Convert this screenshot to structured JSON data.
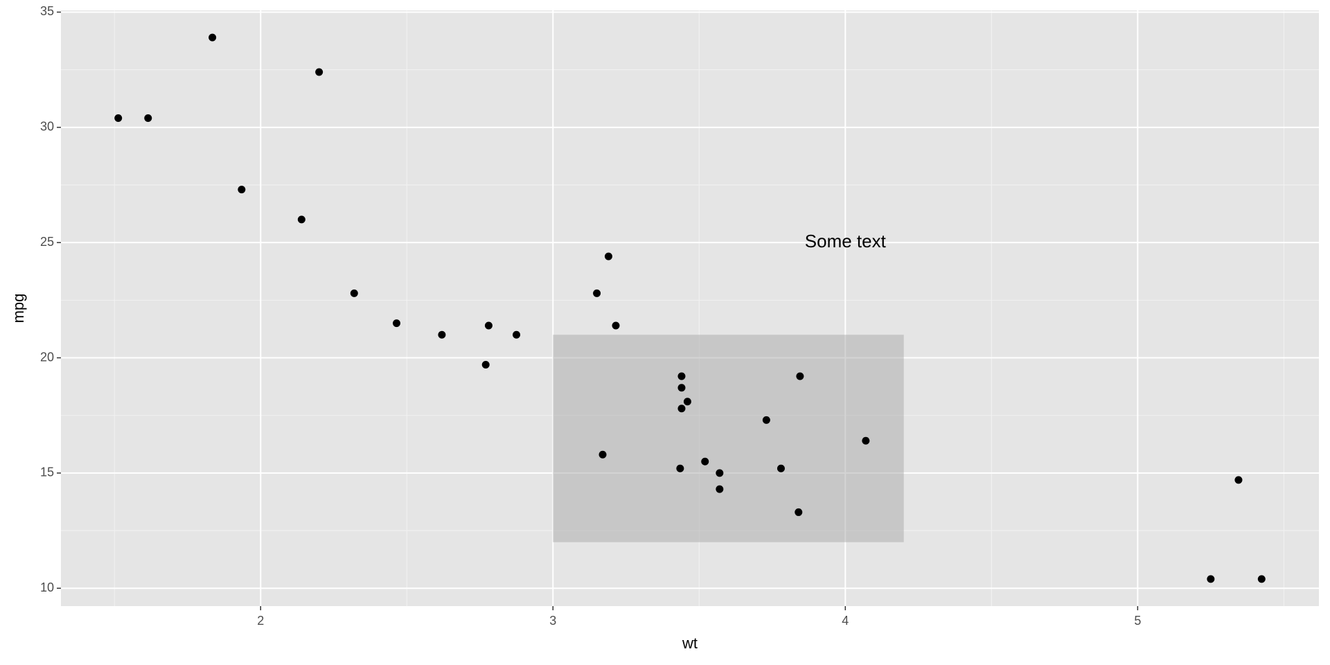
{
  "chart_data": {
    "type": "scatter",
    "x_label": "wt",
    "y_label": "mpg",
    "x": [
      2.62,
      2.875,
      2.32,
      3.215,
      3.44,
      3.46,
      3.57,
      3.19,
      3.15,
      3.44,
      3.44,
      4.07,
      3.73,
      3.78,
      5.25,
      5.424,
      5.345,
      2.2,
      1.615,
      1.835,
      2.465,
      3.52,
      3.435,
      3.84,
      3.845,
      1.935,
      2.14,
      1.513,
      3.17,
      2.77,
      3.57,
      2.78
    ],
    "values": [
      21.0,
      21.0,
      22.8,
      21.4,
      18.7,
      18.1,
      14.3,
      24.4,
      22.8,
      19.2,
      17.8,
      16.4,
      17.3,
      15.2,
      10.4,
      10.4,
      14.7,
      32.4,
      30.4,
      33.9,
      21.5,
      15.5,
      15.2,
      13.3,
      19.2,
      27.3,
      26.0,
      30.4,
      15.8,
      19.7,
      15.0,
      21.4
    ],
    "color": "#000000",
    "xlim": [
      1.317,
      5.62
    ],
    "ylim": [
      9.225,
      35.075
    ],
    "xticks": [
      2,
      3,
      4,
      5
    ],
    "yticks": [
      10,
      15,
      20,
      25,
      30,
      35
    ],
    "xminor": [
      1.5,
      2.5,
      3.5,
      4.5,
      5.5
    ],
    "yminor": [
      12.5,
      17.5,
      22.5,
      27.5,
      32.5
    ],
    "grid": true,
    "rect_annotation": {
      "xmin": 3,
      "xmax": 4.2,
      "ymin": 12,
      "ymax": 21,
      "color": "#aaaaaa"
    },
    "text_annotation": {
      "text": "Some text",
      "x": 4,
      "y": 25
    }
  }
}
